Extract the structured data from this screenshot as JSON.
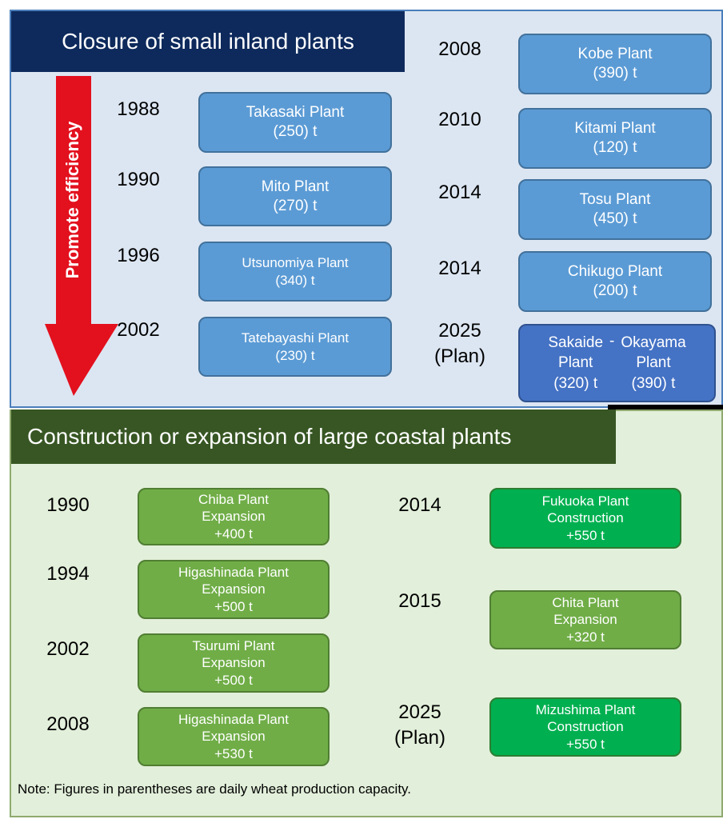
{
  "top": {
    "title": "Closure of small inland plants",
    "arrow_label": "Promote efficiency",
    "left": [
      {
        "year": [
          "1988"
        ],
        "lines": [
          "Takasaki Plant",
          "(250) t"
        ]
      },
      {
        "year": [
          "1990"
        ],
        "lines": [
          "Mito Plant",
          "(270) t"
        ]
      },
      {
        "year": [
          "1996"
        ],
        "lines": [
          "Utsunomiya Plant",
          "(340) t"
        ]
      },
      {
        "year": [
          "2002"
        ],
        "lines": [
          "Tatebayashi Plant",
          "(230) t"
        ]
      }
    ],
    "right": [
      {
        "year": [
          "2008"
        ],
        "lines": [
          "Kobe Plant",
          "(390) t"
        ]
      },
      {
        "year": [
          "2010"
        ],
        "lines": [
          "Kitami Plant",
          "(120) t"
        ]
      },
      {
        "year": [
          "2014"
        ],
        "lines": [
          "Tosu Plant",
          "(450) t"
        ]
      },
      {
        "year": [
          "2014"
        ],
        "lines": [
          "Chikugo Plant",
          "(200) t"
        ]
      }
    ],
    "combined": {
      "year": [
        "2025",
        "(Plan)"
      ],
      "left": [
        "Sakaide",
        "Plant",
        "(320) t"
      ],
      "separator": "-",
      "right": [
        "Okayama",
        "Plant",
        "(390) t"
      ]
    }
  },
  "bottom": {
    "title": "Construction or expansion of large coastal plants",
    "left": [
      {
        "year": [
          "1990"
        ],
        "lines": [
          "Chiba Plant",
          "Expansion",
          "+400 t"
        ]
      },
      {
        "year": [
          "1994"
        ],
        "lines": [
          "Higashinada Plant",
          "Expansion",
          "+500 t"
        ]
      },
      {
        "year": [
          "2002"
        ],
        "lines": [
          "Tsurumi Plant",
          "Expansion",
          "+500 t"
        ]
      },
      {
        "year": [
          "2008"
        ],
        "lines": [
          "Higashinada Plant",
          "Expansion",
          "+530 t"
        ]
      }
    ],
    "right": [
      {
        "year": [
          "2014"
        ],
        "lines": [
          "Fukuoka Plant",
          "Construction",
          "+550 t"
        ]
      },
      {
        "year": [
          "2015"
        ],
        "lines": [
          "Chita Plant",
          "Expansion",
          "+320 t"
        ]
      },
      {
        "year": [
          "2025",
          "(Plan)"
        ],
        "lines": [
          "Mizushima Plant",
          "Construction",
          "+550 t"
        ]
      }
    ]
  },
  "note": "Note: Figures in parentheses are daily wheat production capacity."
}
